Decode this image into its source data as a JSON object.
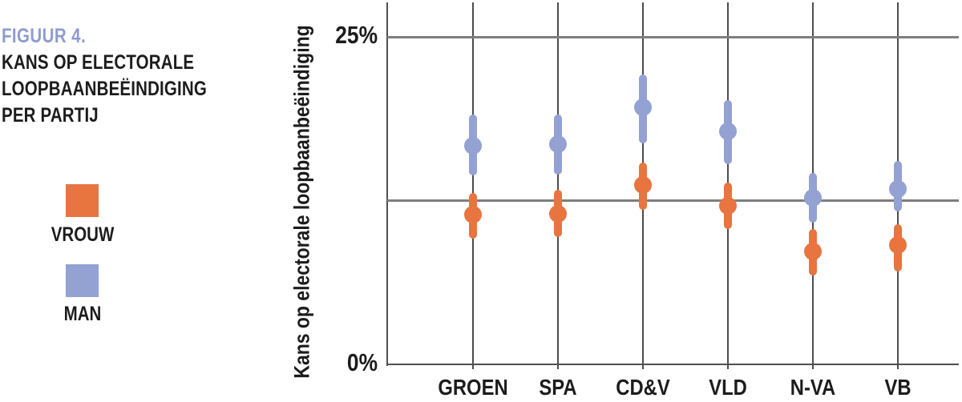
{
  "figure": {
    "label": "FIGUUR 4.",
    "label_color": "#8e9bd0",
    "title": "KANS OP ELECTORALE\nLOOPBAANBEËINDIGING\nPER PARTIJ"
  },
  "legend": {
    "items": [
      {
        "label": "VROUW",
        "color": "#e8743f"
      },
      {
        "label": "MAN",
        "color": "#93a1d3"
      }
    ]
  },
  "chart_data": {
    "type": "scatter",
    "subtype": "pointrange-with-ci",
    "title": "Kans op electorale loopbaanbeëindiging per partij",
    "ylabel": "Kans op electorale loopbaanbeëindiging",
    "xlabel": "",
    "ylim": [
      0,
      25
    ],
    "yticks": [
      {
        "value": 0,
        "label": "0%"
      },
      {
        "value": 25,
        "label": "25%"
      }
    ],
    "reference_line": 12.5,
    "grid": "vertical-per-category",
    "legend_position": "left",
    "categories": [
      "GROEN",
      "SPA",
      "CD&V",
      "VLD",
      "N-VA",
      "VB"
    ],
    "series": [
      {
        "name": "VROUW",
        "color": "#e8743f",
        "values": [
          11.4,
          11.5,
          13.7,
          12.1,
          8.6,
          9.1
        ],
        "ci_low": [
          9.6,
          9.7,
          11.8,
          10.3,
          6.8,
          7.1
        ],
        "ci_high": [
          13.1,
          13.3,
          15.4,
          13.9,
          10.3,
          10.7
        ]
      },
      {
        "name": "MAN",
        "color": "#93a1d3",
        "values": [
          16.7,
          16.8,
          19.6,
          17.8,
          12.7,
          13.4
        ],
        "ci_low": [
          14.4,
          14.5,
          16.9,
          15.3,
          10.8,
          11.7
        ],
        "ci_high": [
          19.1,
          19.1,
          22.1,
          20.2,
          14.6,
          15.5
        ]
      }
    ],
    "colors": {
      "gridline": "#4d4d4d",
      "reference_line": "#7e7e7e",
      "axis": "#4f4f4f",
      "text": "#1c1c1c"
    }
  }
}
